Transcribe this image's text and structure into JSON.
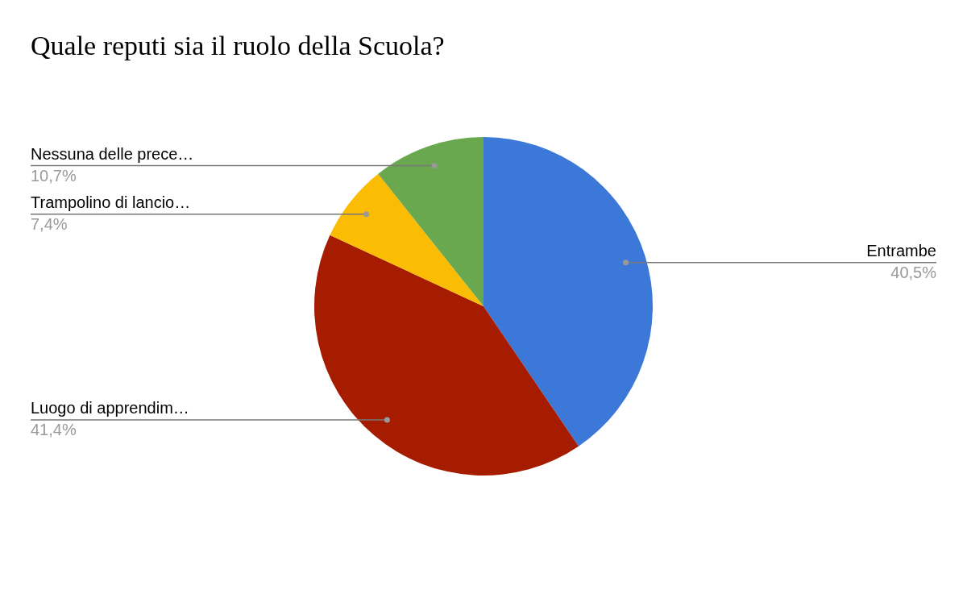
{
  "chart_data": {
    "type": "pie",
    "title": "Quale reputi sia il ruolo della Scuola?",
    "categories": [
      "Entrambe",
      "Luogo di apprendim…",
      "Trampolino di lancio…",
      "Nessuna delle prece…"
    ],
    "values": [
      40.5,
      41.4,
      7.4,
      10.7
    ],
    "colors": [
      "#3c78d8",
      "#a61c00",
      "#fbbc04",
      "#6aa84f"
    ],
    "value_labels": [
      "40,5%",
      "41,4%",
      "7,4%",
      "10,7%"
    ],
    "legend": false
  }
}
